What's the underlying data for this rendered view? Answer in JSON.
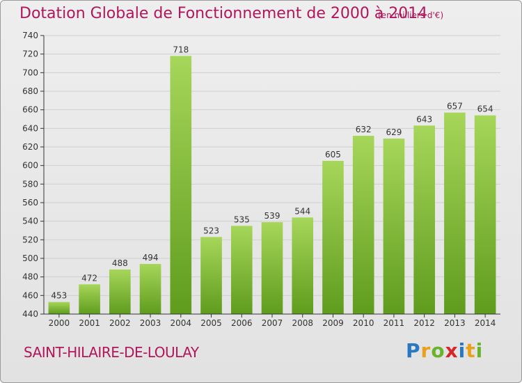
{
  "header": {
    "title": "Dotation Globale de Fonctionnement de 2000 à 2014",
    "unit": "(en milliers d'€)"
  },
  "footer": {
    "commune": "SAINT-HILAIRE-DE-LOULAY",
    "logo": {
      "letters": [
        "P",
        "r",
        "o",
        "x",
        "i",
        "t",
        "i"
      ],
      "colors": [
        "#2b78c2",
        "#e9a01b",
        "#6ab42d",
        "#d7262b",
        "#2b78c2",
        "#e9a01b",
        "#6ab42d"
      ]
    }
  },
  "colors": {
    "bar_light": "#a6d65a",
    "bar_dark": "#5f9c1d",
    "title": "#b0165c",
    "grid": "#cfcfcf"
  },
  "chart_data": {
    "type": "bar",
    "categories": [
      "2000",
      "2001",
      "2002",
      "2003",
      "2004",
      "2005",
      "2006",
      "2007",
      "2008",
      "2009",
      "2010",
      "2011",
      "2012",
      "2013",
      "2014"
    ],
    "values": [
      453,
      472,
      488,
      494,
      718,
      523,
      535,
      539,
      544,
      605,
      632,
      629,
      643,
      657,
      654
    ],
    "data_labels": [
      "453",
      "472",
      "488",
      "494",
      "718",
      "523",
      "535",
      "539",
      "544",
      "605",
      "632",
      "629",
      "643",
      "657",
      "654"
    ],
    "ylim": [
      440,
      740
    ],
    "yticks": [
      440,
      460,
      480,
      500,
      520,
      540,
      560,
      580,
      600,
      620,
      640,
      660,
      680,
      700,
      720,
      740
    ],
    "ytick_labels": [
      "440",
      "460",
      "480",
      "500",
      "520",
      "540",
      "560",
      "580",
      "600",
      "620",
      "640",
      "660",
      "680",
      "700",
      "720",
      "740"
    ],
    "grid": true,
    "xlabel": "",
    "ylabel": ""
  }
}
